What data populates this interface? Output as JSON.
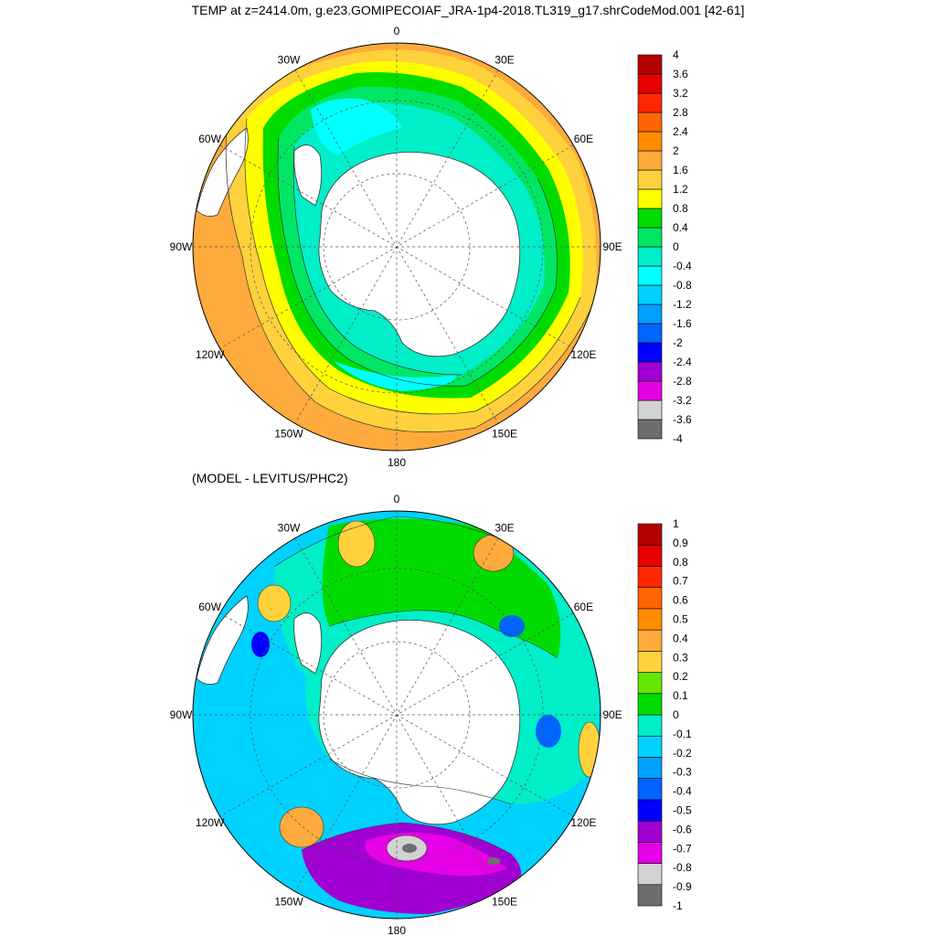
{
  "title": "TEMP at z=2414.0m, g.e23.GOMIPECOIAF_JRA-1p4-2018.TL319_g17.shrCodeMod.001 [42-61]",
  "diff_title": "(MODEL - LEVITUS/PHC2)",
  "lon_labels": [
    "0",
    "30E",
    "60E",
    "90E",
    "120E",
    "150E",
    "180",
    "150W",
    "120W",
    "90W",
    "60W",
    "30W"
  ],
  "colors": {
    "top": [
      "#6e6e6e",
      "#d2d2d2",
      "#e600e6",
      "#a000d2",
      "#0000ff",
      "#0064ff",
      "#00a0ff",
      "#00d2ff",
      "#00ffff",
      "#00eec8",
      "#00e664",
      "#00dc00",
      "#ffff00",
      "#ffd23c",
      "#ffaa3c",
      "#ff8c00",
      "#ff6400",
      "#ff2800",
      "#e60000",
      "#b40000"
    ],
    "bottom": [
      "#6e6e6e",
      "#d2d2d2",
      "#e600e6",
      "#a000d2",
      "#0000ff",
      "#0064ff",
      "#00a0ff",
      "#00d2ff",
      "#00eec8",
      "#00dc00",
      "#64e600",
      "#ffd23c",
      "#ffaa3c",
      "#ff8c00",
      "#ff6400",
      "#ff2800",
      "#e60000",
      "#b40000"
    ]
  },
  "colorbar_top": {
    "levels": [
      "-4",
      "-3.6",
      "-3.2",
      "-2.8",
      "-2.4",
      "-2",
      "-1.6",
      "-1.2",
      "-0.8",
      "-0.4",
      "0",
      "0.4",
      "0.8",
      "1.2",
      "1.6",
      "2",
      "2.4",
      "2.8",
      "3.2",
      "3.6",
      "4"
    ]
  },
  "colorbar_bottom": {
    "levels": [
      "-1",
      "-0.9",
      "-0.8",
      "-0.7",
      "-0.6",
      "-0.5",
      "-0.4",
      "-0.3",
      "-0.2",
      "-0.1",
      "0",
      "0.1",
      "0.2",
      "0.3",
      "0.4",
      "0.5",
      "0.6",
      "0.7",
      "0.8",
      "0.9",
      "1"
    ]
  }
}
